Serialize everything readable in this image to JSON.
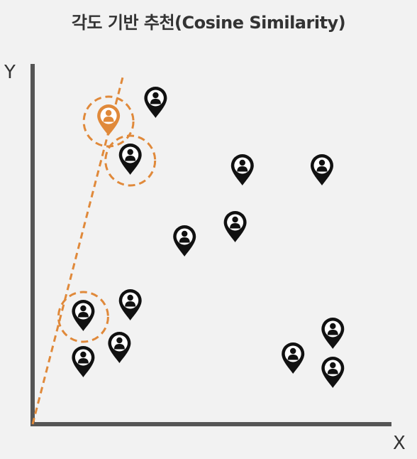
{
  "title": "각도 기반 추천(Cosine Similarity)",
  "axes": {
    "x_label": "X",
    "y_label": "Y"
  },
  "colors": {
    "background": "#f2f2f2",
    "axis": "#555555",
    "pin": "#111111",
    "highlight": "#e0893a"
  },
  "pin_icon": "user-location-pin-icon",
  "points": [
    {
      "x": 0.21,
      "y": 0.82,
      "highlighted": true,
      "target": true
    },
    {
      "x": 0.34,
      "y": 0.87,
      "highlighted": false
    },
    {
      "x": 0.27,
      "y": 0.71,
      "highlighted": true
    },
    {
      "x": 0.58,
      "y": 0.68,
      "highlighted": false
    },
    {
      "x": 0.8,
      "y": 0.68,
      "highlighted": false
    },
    {
      "x": 0.56,
      "y": 0.52,
      "highlighted": false
    },
    {
      "x": 0.42,
      "y": 0.48,
      "highlighted": false
    },
    {
      "x": 0.27,
      "y": 0.3,
      "highlighted": false
    },
    {
      "x": 0.14,
      "y": 0.27,
      "highlighted": true
    },
    {
      "x": 0.24,
      "y": 0.18,
      "highlighted": false
    },
    {
      "x": 0.14,
      "y": 0.14,
      "highlighted": false
    },
    {
      "x": 0.72,
      "y": 0.15,
      "highlighted": false
    },
    {
      "x": 0.83,
      "y": 0.22,
      "highlighted": false
    },
    {
      "x": 0.83,
      "y": 0.11,
      "highlighted": false
    }
  ],
  "reference_line": {
    "from": [
      0,
      0
    ],
    "to": [
      0.25,
      1.0
    ]
  }
}
